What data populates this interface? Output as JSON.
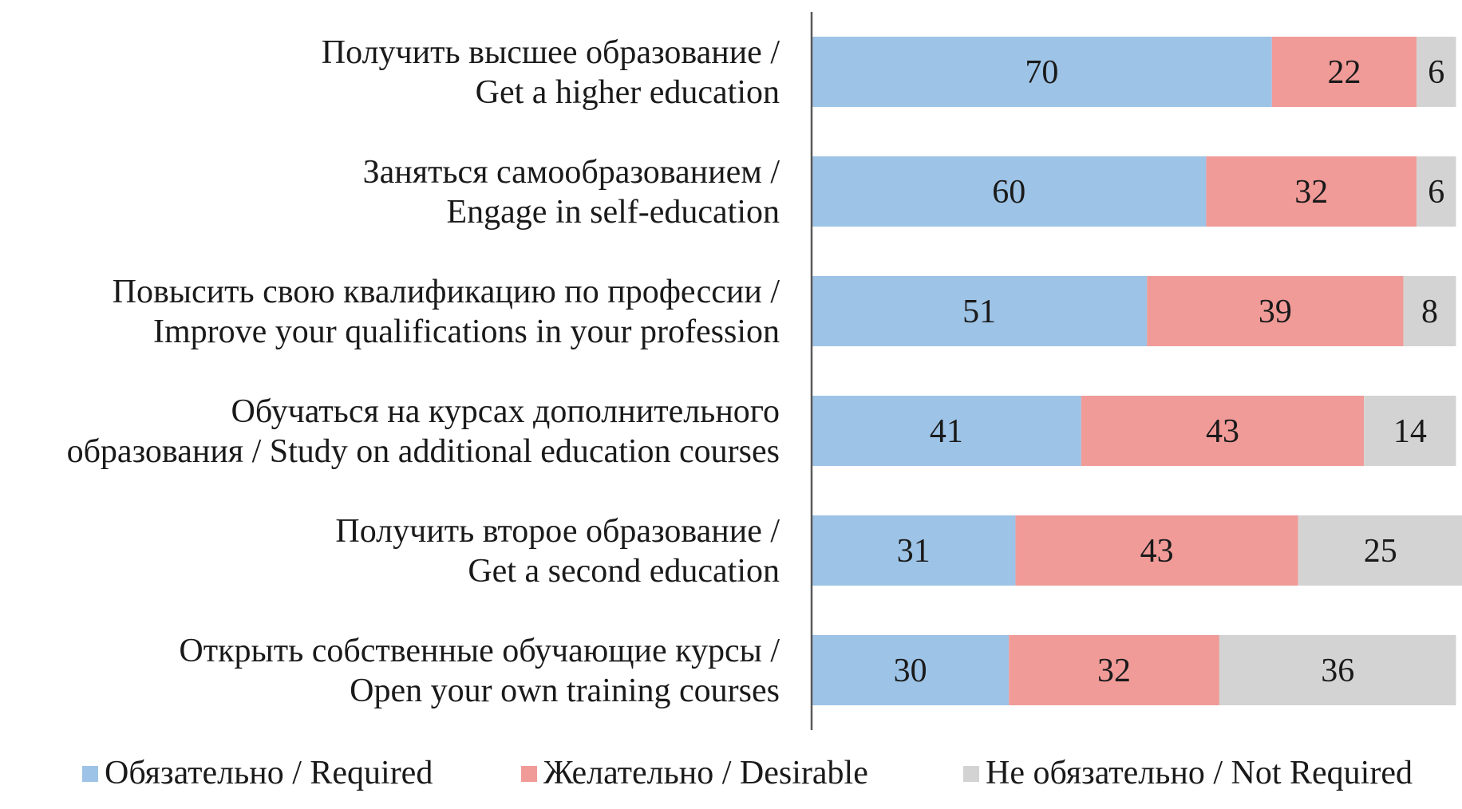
{
  "chart_data": {
    "type": "bar",
    "orientation": "horizontal",
    "stacked": true,
    "categories": [
      [
        "Получить высшее образование /",
        "Get a higher education"
      ],
      [
        "Заняться самообразованием /",
        "Engage in self-education"
      ],
      [
        "Повысить свою квалификацию по профессии /",
        "Improve your qualifications in your profession"
      ],
      [
        "Обучаться на курсах дополнительного",
        "образования / Study on additional education courses"
      ],
      [
        "Получить второе образование /",
        "Get a second education"
      ],
      [
        "Открыть собственные обучающие курсы /",
        "Open your own training courses"
      ]
    ],
    "series": [
      {
        "name": "Обязательно / Required",
        "color": "#9dc3e6",
        "values": [
          70,
          60,
          51,
          41,
          31,
          30
        ]
      },
      {
        "name": "Желательно / Desirable",
        "color": "#f09b98",
        "values": [
          22,
          32,
          39,
          43,
          43,
          32
        ]
      },
      {
        "name": "Не обязательно / Not Required",
        "color": "#d3d3d3",
        "values": [
          6,
          6,
          8,
          14,
          25,
          36
        ]
      }
    ],
    "xlim": [
      0,
      100
    ],
    "data_labels": true,
    "grid": false,
    "legend": "bottom"
  }
}
